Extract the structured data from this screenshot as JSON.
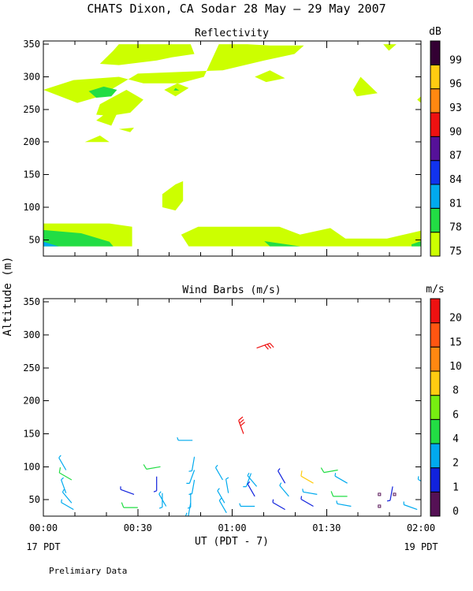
{
  "figure": {
    "title": "CHATS Dixon, CA  Sodar  28 May — 29 May 2007",
    "ylabel": "Altitude (m)",
    "xlabel": "UT  (PDT - 7)",
    "x_left_sub": "17 PDT",
    "x_right_sub": "19 PDT",
    "footer": "Prelimiary Data",
    "xticks": [
      "00:00",
      "00:30",
      "01:00",
      "01:30",
      "02:00"
    ]
  },
  "chart_data": [
    {
      "type": "heatmap",
      "title": "Reflectivity",
      "xlim_hours": [
        0,
        2
      ],
      "ylim": [
        25,
        355
      ],
      "yticks": [
        50,
        100,
        150,
        200,
        250,
        300,
        350
      ],
      "colorbar": {
        "unit": "dB",
        "labels": [
          "75",
          "78",
          "81",
          "84",
          "87",
          "90",
          "93",
          "96",
          "99"
        ],
        "colors": [
          "#ccff00",
          "#22dd44",
          "#00aaee",
          "#1133ee",
          "#551199",
          "#ee1111",
          "#ff8811",
          "#ffcc11",
          "#330033"
        ]
      },
      "regions": [
        {
          "level": 0,
          "pts": [
            [
              0.0,
              75
            ],
            [
              0.35,
              75
            ],
            [
              0.47,
              70
            ],
            [
              0.47,
              40
            ],
            [
              0.0,
              40
            ]
          ]
        },
        {
          "level": 1,
          "pts": [
            [
              0.0,
              65
            ],
            [
              0.2,
              60
            ],
            [
              0.35,
              47
            ],
            [
              0.37,
              40
            ],
            [
              0.0,
              40
            ]
          ]
        },
        {
          "level": 2,
          "pts": [
            [
              0.0,
              47
            ],
            [
              0.08,
              40
            ],
            [
              0.0,
              40
            ]
          ]
        },
        {
          "level": 0,
          "pts": [
            [
              0.73,
              58
            ],
            [
              0.82,
              70
            ],
            [
              1.25,
              70
            ],
            [
              1.36,
              58
            ],
            [
              1.52,
              68
            ],
            [
              1.6,
              52
            ],
            [
              1.82,
              52
            ],
            [
              2.0,
              64
            ],
            [
              2.0,
              40
            ],
            [
              0.77,
              40
            ]
          ]
        },
        {
          "level": 1,
          "pts": [
            [
              1.17,
              48
            ],
            [
              1.36,
              40
            ],
            [
              1.2,
              40
            ]
          ]
        },
        {
          "level": 1,
          "pts": [
            [
              1.95,
              43
            ],
            [
              2.0,
              48
            ],
            [
              2.0,
              40
            ],
            [
              1.95,
              40
            ]
          ]
        },
        {
          "level": 0,
          "pts": [
            [
              0.63,
              120
            ],
            [
              0.7,
              135
            ],
            [
              0.74,
              140
            ],
            [
              0.74,
              110
            ],
            [
              0.7,
              95
            ],
            [
              0.63,
              100
            ]
          ]
        },
        {
          "level": 0,
          "pts": [
            [
              0.22,
              200
            ],
            [
              0.3,
              210
            ],
            [
              0.35,
              200
            ],
            [
              0.22,
              200
            ]
          ]
        },
        {
          "level": 0,
          "pts": [
            [
              0.4,
              220
            ],
            [
              0.48,
              222
            ],
            [
              0.46,
              215
            ],
            [
              0.4,
              220
            ]
          ]
        },
        {
          "level": 0,
          "pts": [
            [
              0.0,
              280
            ],
            [
              0.16,
              295
            ],
            [
              0.4,
              300
            ],
            [
              0.53,
              290
            ],
            [
              0.72,
              290
            ],
            [
              0.85,
              300
            ],
            [
              0.93,
              350
            ],
            [
              1.08,
              350
            ],
            [
              1.2,
              348
            ],
            [
              1.38,
              348
            ],
            [
              1.33,
              335
            ],
            [
              1.17,
              325
            ],
            [
              0.95,
              310
            ],
            [
              0.5,
              305
            ],
            [
              0.3,
              270
            ],
            [
              0.18,
              260
            ],
            [
              0.0,
              280
            ]
          ]
        },
        {
          "level": 0,
          "pts": [
            [
              0.3,
              320
            ],
            [
              0.37,
              340
            ],
            [
              0.4,
              350
            ],
            [
              0.78,
              350
            ],
            [
              0.8,
              335
            ],
            [
              0.68,
              330
            ],
            [
              0.6,
              325
            ],
            [
              0.4,
              318
            ]
          ]
        },
        {
          "level": 0,
          "pts": [
            [
              0.3,
              258
            ],
            [
              0.44,
              280
            ],
            [
              0.53,
              265
            ],
            [
              0.46,
              245
            ],
            [
              0.35,
              240
            ],
            [
              0.28,
              242
            ],
            [
              0.3,
              258
            ]
          ]
        },
        {
          "level": 0,
          "pts": [
            [
              0.28,
              233
            ],
            [
              0.36,
              225
            ],
            [
              0.4,
              250
            ],
            [
              0.35,
              248
            ],
            [
              0.28,
              233
            ]
          ]
        },
        {
          "level": 1,
          "pts": [
            [
              0.24,
              278
            ],
            [
              0.32,
              285
            ],
            [
              0.39,
              280
            ],
            [
              0.36,
              270
            ],
            [
              0.28,
              268
            ],
            [
              0.24,
              278
            ]
          ]
        },
        {
          "level": 0,
          "pts": [
            [
              0.64,
              280
            ],
            [
              0.71,
              290
            ],
            [
              0.77,
              283
            ],
            [
              0.7,
              270
            ],
            [
              0.64,
              280
            ]
          ]
        },
        {
          "level": 1,
          "pts": [
            [
              0.7,
              283
            ],
            [
              0.72,
              279
            ],
            [
              0.69,
              279
            ]
          ]
        },
        {
          "level": 0,
          "pts": [
            [
              1.12,
              300
            ],
            [
              1.2,
              310
            ],
            [
              1.28,
              298
            ],
            [
              1.18,
              292
            ],
            [
              1.12,
              300
            ]
          ]
        },
        {
          "level": 0,
          "pts": [
            [
              1.64,
              280
            ],
            [
              1.68,
              300
            ],
            [
              1.77,
              275
            ],
            [
              1.66,
              270
            ],
            [
              1.64,
              280
            ]
          ]
        },
        {
          "level": 0,
          "pts": [
            [
              1.8,
              350
            ],
            [
              1.83,
              340
            ],
            [
              1.87,
              350
            ]
          ]
        },
        {
          "level": 0,
          "pts": [
            [
              1.98,
              265
            ],
            [
              2.0,
              270
            ],
            [
              2.0,
              260
            ]
          ]
        }
      ]
    },
    {
      "type": "scatter",
      "title": "Wind Barbs (m/s)",
      "xlim_hours": [
        0,
        2
      ],
      "ylim": [
        25,
        355
      ],
      "yticks": [
        50,
        100,
        150,
        200,
        250,
        300,
        350
      ],
      "colorbar": {
        "unit": "m/s",
        "labels": [
          "0",
          "1",
          "2",
          "4",
          "6",
          "8",
          "10",
          "15",
          "20"
        ],
        "colors": [
          "#551155",
          "#1122dd",
          "#00aaee",
          "#22dd44",
          "#77ee11",
          "#ffcc11",
          "#ff8811",
          "#ff5511",
          "#ee1111"
        ]
      },
      "barbs": [
        {
          "t": 0.12,
          "z": 95,
          "dir": 330,
          "spd": 2.5
        },
        {
          "t": 0.15,
          "z": 80,
          "dir": 300,
          "spd": 4
        },
        {
          "t": 0.12,
          "z": 60,
          "dir": 340,
          "spd": 2.5
        },
        {
          "t": 0.15,
          "z": 45,
          "dir": 320,
          "spd": 2.5
        },
        {
          "t": 0.16,
          "z": 35,
          "dir": 300,
          "spd": 2.5
        },
        {
          "t": 0.48,
          "z": 58,
          "dir": 290,
          "spd": 1.5
        },
        {
          "t": 0.5,
          "z": 38,
          "dir": 270,
          "spd": 4
        },
        {
          "t": 0.62,
          "z": 100,
          "dir": 260,
          "spd": 4
        },
        {
          "t": 0.6,
          "z": 85,
          "dir": 180,
          "spd": 1
        },
        {
          "t": 0.63,
          "z": 60,
          "dir": 180,
          "spd": 2.5
        },
        {
          "t": 0.65,
          "z": 40,
          "dir": 330,
          "spd": 2.5
        },
        {
          "t": 0.79,
          "z": 140,
          "dir": 270,
          "spd": 2.5
        },
        {
          "t": 0.8,
          "z": 115,
          "dir": 190,
          "spd": 2.5
        },
        {
          "t": 0.8,
          "z": 95,
          "dir": 200,
          "spd": 2.5
        },
        {
          "t": 0.8,
          "z": 80,
          "dir": 190,
          "spd": 2.5
        },
        {
          "t": 0.78,
          "z": 60,
          "dir": 180,
          "spd": 2.5
        },
        {
          "t": 0.78,
          "z": 45,
          "dir": 190,
          "spd": 2.5
        },
        {
          "t": 0.76,
          "z": 30,
          "dir": 200,
          "spd": 2.5
        },
        {
          "t": 0.95,
          "z": 80,
          "dir": 330,
          "spd": 2.5
        },
        {
          "t": 0.98,
          "z": 60,
          "dir": 350,
          "spd": 2.5
        },
        {
          "t": 0.96,
          "z": 45,
          "dir": 330,
          "spd": 2.5
        },
        {
          "t": 0.97,
          "z": 30,
          "dir": 330,
          "spd": 2.5
        },
        {
          "t": 1.06,
          "z": 150,
          "dir": 340,
          "spd": 20
        },
        {
          "t": 1.13,
          "z": 280,
          "dir": 70,
          "spd": 20
        },
        {
          "t": 1.1,
          "z": 90,
          "dir": 200,
          "spd": 2.5
        },
        {
          "t": 1.13,
          "z": 70,
          "dir": 320,
          "spd": 2.5
        },
        {
          "t": 1.12,
          "z": 55,
          "dir": 330,
          "spd": 1.5
        },
        {
          "t": 1.12,
          "z": 40,
          "dir": 270,
          "spd": 2.5
        },
        {
          "t": 1.28,
          "z": 75,
          "dir": 330,
          "spd": 1.5
        },
        {
          "t": 1.3,
          "z": 55,
          "dir": 320,
          "spd": 2.5
        },
        {
          "t": 1.28,
          "z": 35,
          "dir": 300,
          "spd": 1.5
        },
        {
          "t": 1.43,
          "z": 75,
          "dir": 300,
          "spd": 8
        },
        {
          "t": 1.45,
          "z": 58,
          "dir": 280,
          "spd": 2.5
        },
        {
          "t": 1.43,
          "z": 40,
          "dir": 300,
          "spd": 1.5
        },
        {
          "t": 1.56,
          "z": 95,
          "dir": 260,
          "spd": 4
        },
        {
          "t": 1.61,
          "z": 75,
          "dir": 300,
          "spd": 2.5
        },
        {
          "t": 1.61,
          "z": 55,
          "dir": 270,
          "spd": 4
        },
        {
          "t": 1.63,
          "z": 40,
          "dir": 280,
          "spd": 2.5
        },
        {
          "t": 1.85,
          "z": 70,
          "dir": 190,
          "spd": 1.5
        },
        {
          "t": 1.98,
          "z": 35,
          "dir": 290,
          "spd": 2.5
        },
        {
          "t": 2.05,
          "z": 70,
          "dir": 300,
          "spd": 2.5
        }
      ],
      "calm": [
        {
          "t": 1.78,
          "z": 58
        },
        {
          "t": 1.78,
          "z": 40
        },
        {
          "t": 1.86,
          "z": 58
        },
        {
          "t": 2.02,
          "z": 40
        }
      ]
    }
  ]
}
